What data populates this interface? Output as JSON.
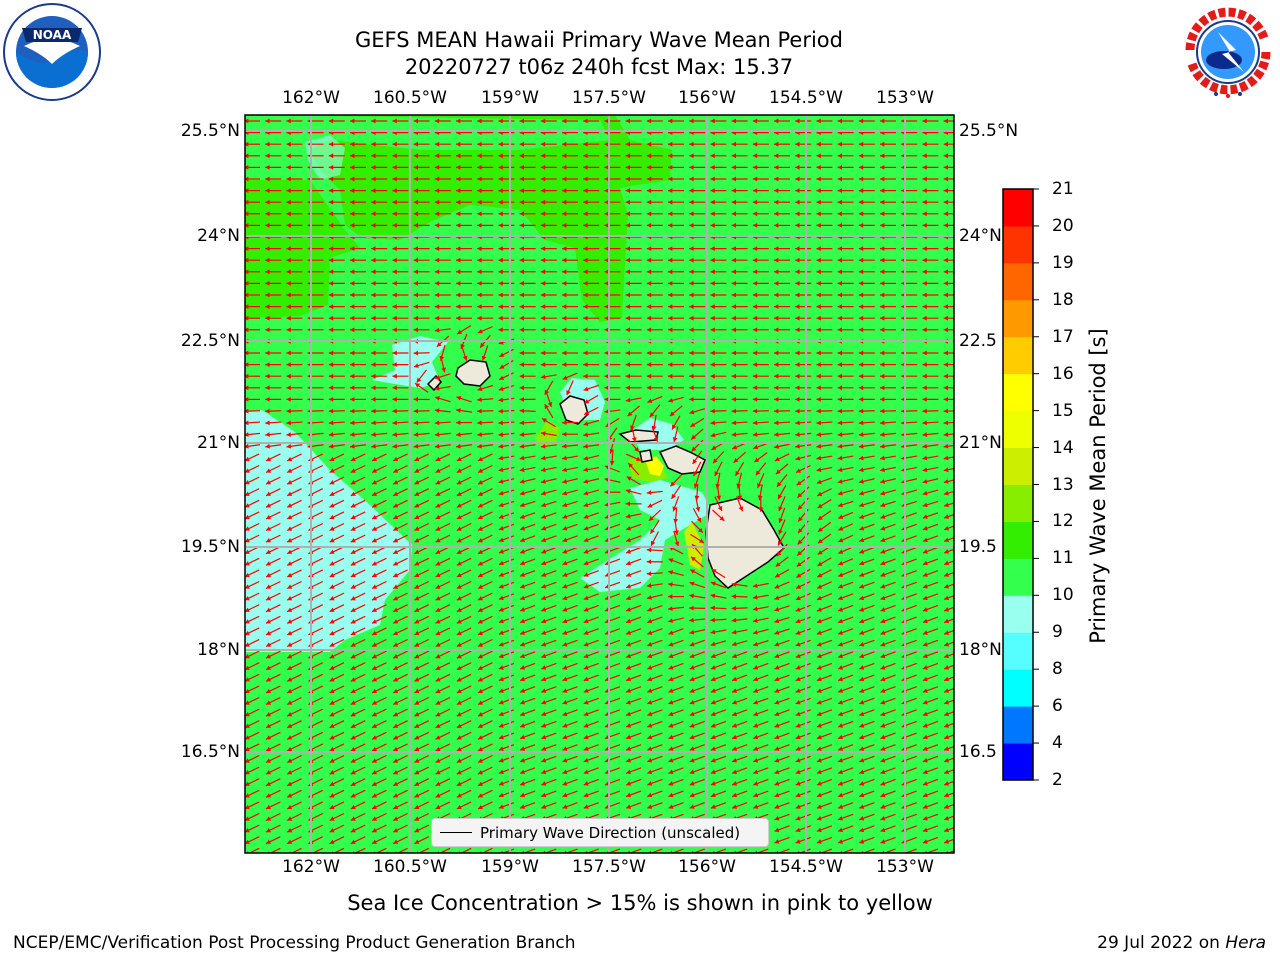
{
  "title": {
    "line1": "GEFS MEAN Hawaii Primary Wave Mean Period",
    "line2": "20220727 t06z 240h fcst   Max: 15.37"
  },
  "logos": {
    "left": "noaa-logo",
    "right": "national-weather-service-logo"
  },
  "map": {
    "lon_ticks": [
      "162°W",
      "160.5°W",
      "159°W",
      "157.5°W",
      "156°W",
      "154.5°W",
      "153°W"
    ],
    "lat_ticks_left": [
      "25.5°N",
      "24°N",
      "22.5°N",
      "21°N",
      "19.5°N",
      "18°N",
      "16.5°N"
    ],
    "lat_ticks_right": [
      "25.5°N",
      "24°N",
      "22.5",
      "21°N",
      "19.5",
      "18°N",
      "16.5"
    ],
    "lon_range": [
      -163.0,
      -152.7
    ],
    "lat_range": [
      15.0,
      25.7
    ],
    "colors": {
      "period_10_11": "#33ff4d",
      "period_11_12": "#33ee00",
      "period_9_10": "#99ffee",
      "land": "#eeeadb",
      "arrows": "#ff0000",
      "grid": "#b0b0b0"
    },
    "arrow_direction": "westward with local deflection around islands"
  },
  "colorbar": {
    "label": "Primary Wave Mean Period [s]",
    "ticks": [
      "2",
      "4",
      "6",
      "8",
      "9",
      "10",
      "11",
      "12",
      "13",
      "14",
      "15",
      "16",
      "17",
      "18",
      "19",
      "20",
      "21"
    ],
    "colors": [
      "#0000ff",
      "#0077ff",
      "#00ffff",
      "#55ffff",
      "#99ffee",
      "#33ff4d",
      "#33ee00",
      "#88ee00",
      "#ccee00",
      "#eeff00",
      "#ffff00",
      "#ffcc00",
      "#ff9900",
      "#ff6600",
      "#ff3300",
      "#ff0000"
    ]
  },
  "legend": {
    "label": "Primary Wave Direction (unscaled)"
  },
  "seaice_note": "Sea Ice Concentration > 15% is shown in pink to yellow",
  "footer": {
    "left": "NCEP/EMC/Verification Post Processing Product Generation Branch",
    "right_date": "29 Jul 2022 on",
    "right_machine": "Hera"
  }
}
